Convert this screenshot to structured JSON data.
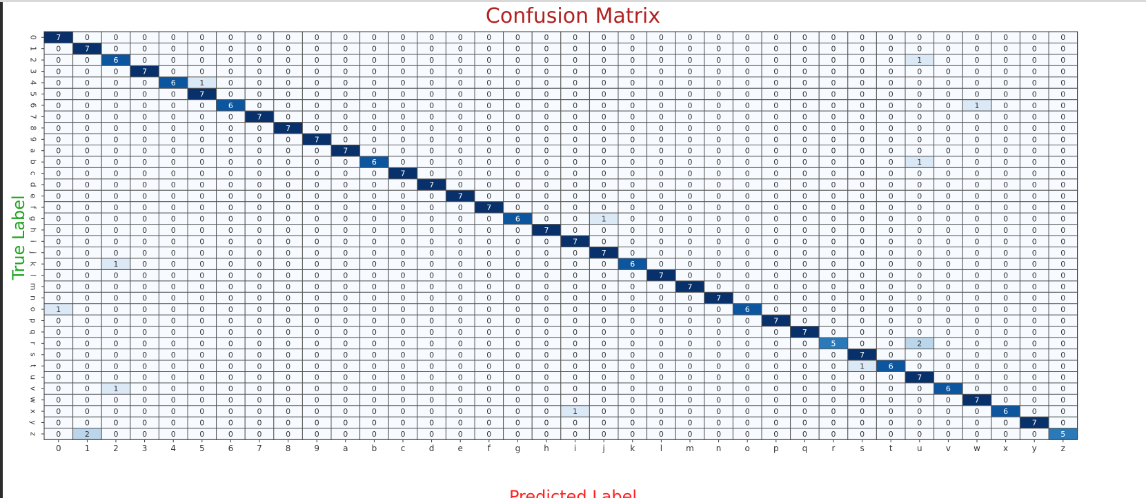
{
  "chart_data": {
    "type": "heatmap",
    "title": "Confusion Matrix",
    "xlabel": "Predicted Label",
    "ylabel": "True Label",
    "labels": [
      "0",
      "1",
      "2",
      "3",
      "4",
      "5",
      "6",
      "7",
      "8",
      "9",
      "a",
      "b",
      "c",
      "d",
      "e",
      "f",
      "g",
      "h",
      "i",
      "j",
      "k",
      "l",
      "m",
      "n",
      "o",
      "p",
      "q",
      "r",
      "s",
      "t",
      "u",
      "v",
      "w",
      "x",
      "y",
      "z"
    ],
    "diagonal": [
      7,
      7,
      6,
      7,
      6,
      7,
      6,
      7,
      7,
      7,
      7,
      6,
      7,
      7,
      7,
      7,
      6,
      7,
      7,
      7,
      6,
      7,
      7,
      7,
      6,
      7,
      7,
      5,
      7,
      6,
      7,
      6,
      7,
      6,
      7,
      5
    ],
    "off_diagonal": [
      {
        "row": 2,
        "col": 30,
        "value": 1
      },
      {
        "row": 4,
        "col": 5,
        "value": 1
      },
      {
        "row": 6,
        "col": 32,
        "value": 1
      },
      {
        "row": 11,
        "col": 30,
        "value": 1
      },
      {
        "row": 16,
        "col": 19,
        "value": 1
      },
      {
        "row": 20,
        "col": 2,
        "value": 1
      },
      {
        "row": 24,
        "col": 0,
        "value": 1
      },
      {
        "row": 27,
        "col": 30,
        "value": 2
      },
      {
        "row": 29,
        "col": 28,
        "value": 1
      },
      {
        "row": 31,
        "col": 2,
        "value": 1
      },
      {
        "row": 33,
        "col": 18,
        "value": 1
      },
      {
        "row": 35,
        "col": 1,
        "value": 2
      }
    ],
    "colormap": "Blues",
    "vmin": 0,
    "vmax": 7,
    "grid": true,
    "legend": "none"
  }
}
